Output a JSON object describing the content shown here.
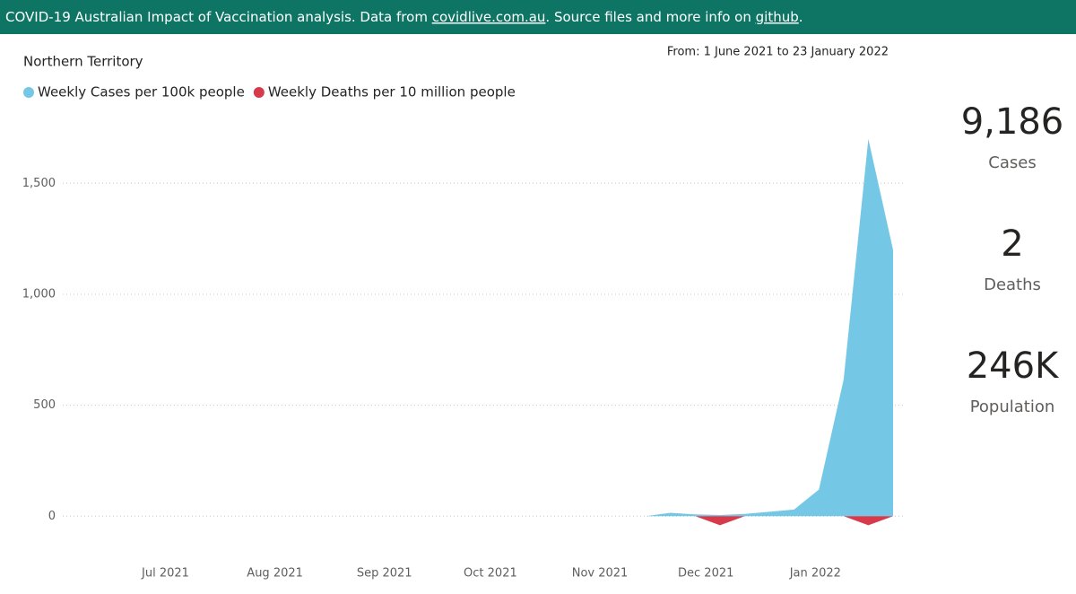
{
  "header": {
    "parts": [
      "COVID-19 Australian Impact of Vaccination analysis. Data from ",
      "covidlive.com.au",
      ". Source files and more info on ",
      "github",
      "."
    ]
  },
  "date_range": "From: 1 June 2021 to 23 January 2022",
  "cards": [
    {
      "value": "9,186",
      "label": "Cases"
    },
    {
      "value": "2",
      "label": "Deaths"
    },
    {
      "value": "246K",
      "label": "Population"
    }
  ],
  "chart_data": {
    "type": "area",
    "title": "Northern Territory",
    "x": [
      "2021-06-06",
      "2021-06-13",
      "2021-06-20",
      "2021-06-27",
      "2021-07-04",
      "2021-07-11",
      "2021-07-18",
      "2021-07-25",
      "2021-08-01",
      "2021-08-08",
      "2021-08-15",
      "2021-08-22",
      "2021-08-29",
      "2021-09-05",
      "2021-09-12",
      "2021-09-19",
      "2021-09-26",
      "2021-10-03",
      "2021-10-10",
      "2021-10-17",
      "2021-10-24",
      "2021-10-31",
      "2021-11-07",
      "2021-11-14",
      "2021-11-21",
      "2021-11-28",
      "2021-12-05",
      "2021-12-12",
      "2021-12-19",
      "2021-12-26",
      "2022-01-02",
      "2022-01-09",
      "2022-01-16",
      "2022-01-23"
    ],
    "series": [
      {
        "name": "Weekly Cases per 100k people",
        "color": "#74c7e5",
        "values": [
          0,
          0,
          0,
          0,
          0,
          0,
          0,
          0,
          0,
          0,
          0,
          0,
          0,
          0,
          0,
          0,
          0,
          0,
          0,
          0,
          0,
          0,
          0,
          0,
          15,
          8,
          5,
          10,
          20,
          30,
          120,
          615,
          1700,
          1200
        ]
      },
      {
        "name": "Weekly Deaths per 10 million people",
        "color": "#d73a4b",
        "values": [
          0,
          0,
          0,
          0,
          0,
          0,
          0,
          0,
          0,
          0,
          0,
          0,
          0,
          0,
          0,
          0,
          0,
          0,
          0,
          0,
          0,
          0,
          0,
          0,
          0,
          0,
          -41,
          0,
          0,
          0,
          0,
          0,
          -41,
          0
        ]
      }
    ],
    "xlim": [
      "2021-06-06",
      "2022-01-23"
    ],
    "xticks": [
      {
        "value": "2021-07-01",
        "label": "Jul 2021"
      },
      {
        "value": "2021-08-01",
        "label": "Aug 2021"
      },
      {
        "value": "2021-09-01",
        "label": "Sep 2021"
      },
      {
        "value": "2021-10-01",
        "label": "Oct 2021"
      },
      {
        "value": "2021-11-01",
        "label": "Nov 2021"
      },
      {
        "value": "2021-12-01",
        "label": "Dec 2021"
      },
      {
        "value": "2022-01-01",
        "label": "Jan 2022"
      }
    ],
    "ylim": [
      -100,
      1760
    ],
    "yticks": [
      0,
      500,
      {
        "value": 1000,
        "label": "1,000"
      },
      {
        "value": 1500,
        "label": "1,500"
      }
    ],
    "grid": true,
    "legend": "top-left"
  }
}
